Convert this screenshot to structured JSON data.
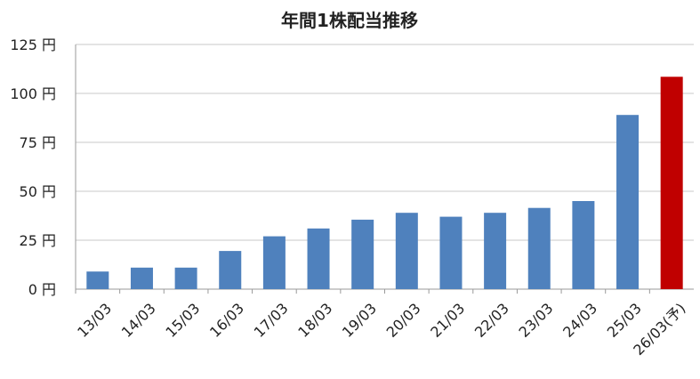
{
  "chart_data": {
    "type": "bar",
    "title": "年間1株配当推移",
    "categories": [
      "13/03",
      "14/03",
      "15/03",
      "16/03",
      "17/03",
      "18/03",
      "19/03",
      "20/03",
      "21/03",
      "22/03",
      "23/03",
      "24/03",
      "25/03",
      "26/03(予)"
    ],
    "values": [
      9,
      11,
      11,
      19.5,
      27,
      31,
      35.5,
      39,
      37,
      39,
      41.5,
      45,
      89,
      108.5
    ],
    "ylim": [
      0,
      125
    ],
    "yticks": [
      0,
      25,
      50,
      75,
      100,
      125
    ],
    "ytick_labels": [
      "0 円",
      "25 円",
      "50 円",
      "75 円",
      "100 円",
      "125 円"
    ],
    "grid": true,
    "colors": {
      "actual": "#4f81bd",
      "forecast": "#c00000"
    },
    "forecast_index": 13
  }
}
